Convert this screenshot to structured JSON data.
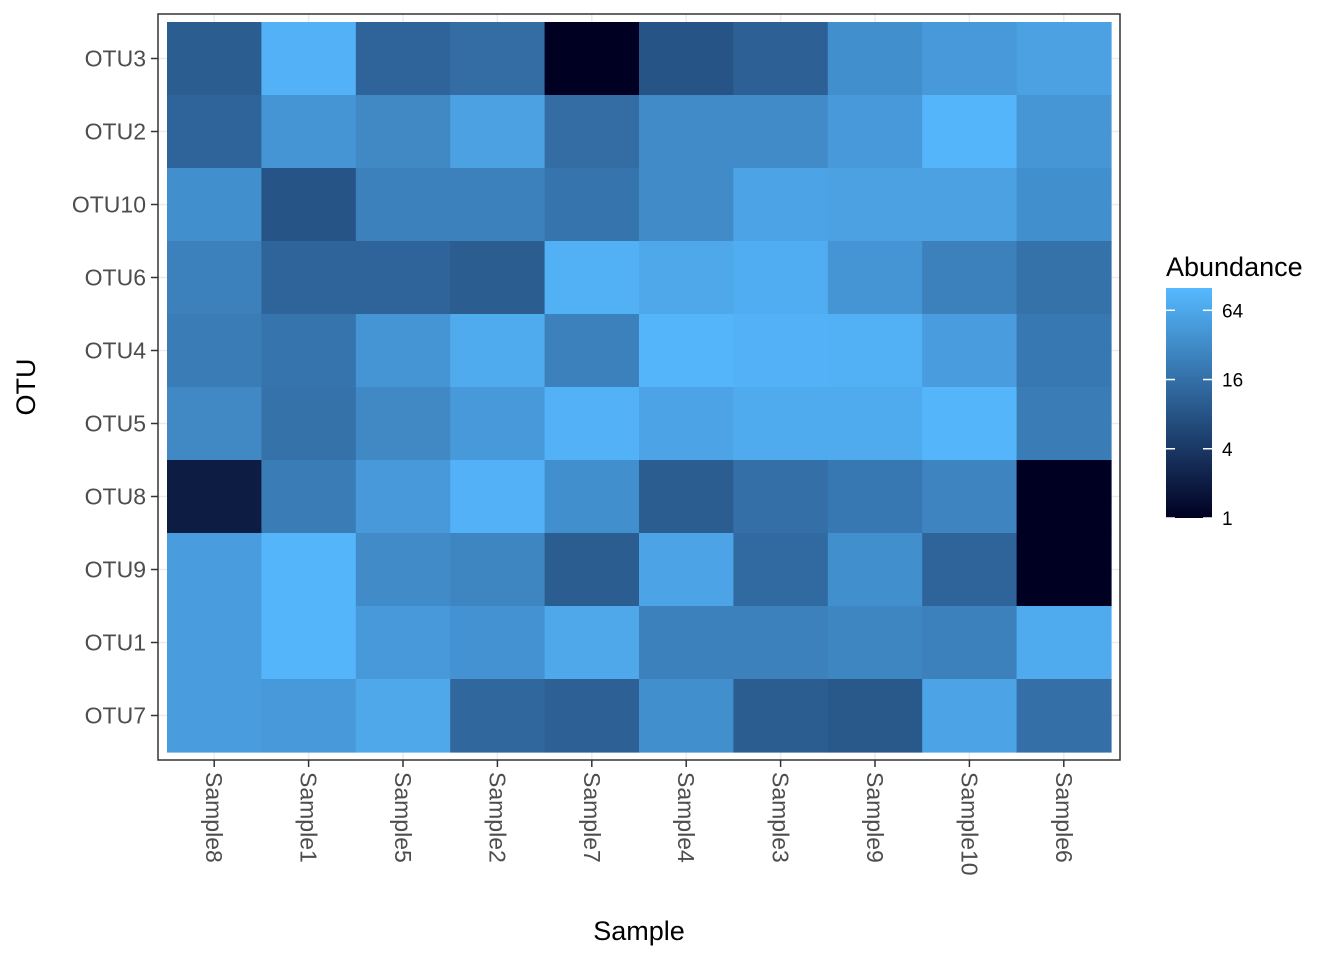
{
  "chart_data": {
    "type": "heatmap",
    "xlabel": "Sample",
    "ylabel": "OTU",
    "x_categories": [
      "Sample8",
      "Sample1",
      "Sample5",
      "Sample2",
      "Sample7",
      "Sample4",
      "Sample3",
      "Sample9",
      "Sample10",
      "Sample6"
    ],
    "y_categories": [
      "OTU3",
      "OTU2",
      "OTU10",
      "OTU6",
      "OTU4",
      "OTU5",
      "OTU8",
      "OTU9",
      "OTU1",
      "OTU7"
    ],
    "values": [
      [
        10,
        85,
        12,
        15,
        1,
        8,
        11,
        35,
        45,
        55
      ],
      [
        12,
        40,
        30,
        55,
        15,
        32,
        32,
        45,
        90,
        42
      ],
      [
        35,
        8,
        25,
        25,
        18,
        32,
        60,
        55,
        55,
        35
      ],
      [
        25,
        12,
        12,
        10,
        80,
        65,
        75,
        40,
        25,
        17
      ],
      [
        22,
        18,
        40,
        70,
        25,
        90,
        85,
        80,
        50,
        20
      ],
      [
        30,
        17,
        30,
        45,
        85,
        60,
        70,
        70,
        90,
        22
      ],
      [
        2,
        22,
        45,
        85,
        35,
        10,
        16,
        20,
        27,
        1
      ],
      [
        50,
        90,
        32,
        28,
        10,
        60,
        14,
        35,
        12,
        1
      ],
      [
        50,
        90,
        45,
        38,
        65,
        25,
        25,
        28,
        25,
        70
      ],
      [
        50,
        45,
        65,
        13,
        11,
        35,
        10,
        9,
        60,
        16
      ]
    ],
    "scale": "log2",
    "color_low": "#000022",
    "color_high": "#56B9FF",
    "zlim": [
      1,
      100
    ],
    "legend": {
      "title": "Abundance",
      "ticks": [
        "64",
        "16",
        "4",
        "1"
      ],
      "tick_values": [
        64,
        16,
        4,
        1
      ],
      "position": "right"
    },
    "grid": true
  }
}
